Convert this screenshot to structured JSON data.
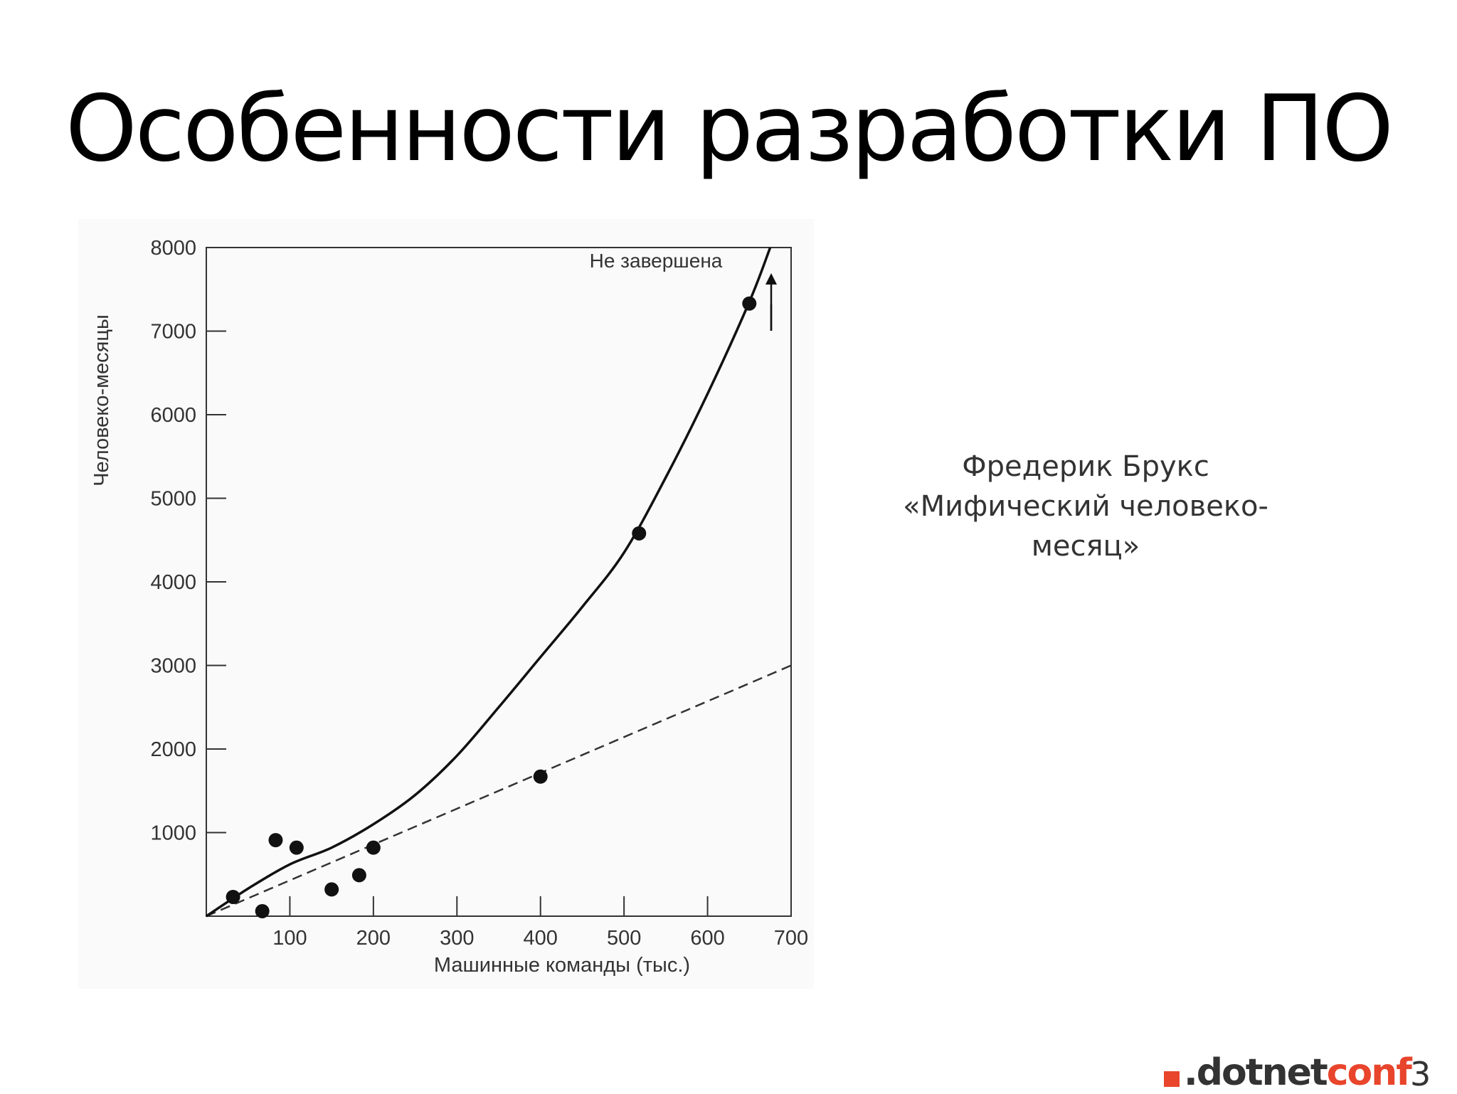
{
  "slide": {
    "title": "Особенности разработки ПО",
    "quote_lines": [
      "Фредерик Брукс",
      "«Мифический человеко-",
      "месяц»"
    ],
    "logo": {
      "dot": ".",
      "dotnet": "dotnet",
      "conf": "conf",
      "accent_color": "#e8452c"
    },
    "page_number": "3"
  },
  "chart_data": {
    "type": "scatter",
    "xlabel": "Машинные команды (тыс.)",
    "ylabel": "Человеко-месяцы",
    "xlim": [
      0,
      700
    ],
    "ylim": [
      0,
      8000
    ],
    "xticks": [
      100,
      200,
      300,
      400,
      500,
      600,
      700
    ],
    "yticks": [
      1000,
      2000,
      3000,
      4000,
      5000,
      6000,
      7000,
      8000
    ],
    "grid": false,
    "annotation": "Не завершена",
    "points": [
      {
        "x": 32,
        "y": 230
      },
      {
        "x": 67,
        "y": 60
      },
      {
        "x": 83,
        "y": 910
      },
      {
        "x": 108,
        "y": 820
      },
      {
        "x": 150,
        "y": 320
      },
      {
        "x": 183,
        "y": 490
      },
      {
        "x": 200,
        "y": 820
      },
      {
        "x": 400,
        "y": 1670
      },
      {
        "x": 518,
        "y": 4580
      },
      {
        "x": 650,
        "y": 7330
      }
    ],
    "curve": [
      [
        0,
        0
      ],
      [
        50,
        330
      ],
      [
        100,
        620
      ],
      [
        150,
        820
      ],
      [
        200,
        1100
      ],
      [
        250,
        1450
      ],
      [
        300,
        1920
      ],
      [
        350,
        2500
      ],
      [
        400,
        3100
      ],
      [
        450,
        3700
      ],
      [
        500,
        4350
      ],
      [
        550,
        5250
      ],
      [
        600,
        6250
      ],
      [
        650,
        7350
      ],
      [
        675,
        8000
      ]
    ],
    "dashed_line": [
      [
        0,
        0
      ],
      [
        700,
        3000
      ]
    ]
  }
}
